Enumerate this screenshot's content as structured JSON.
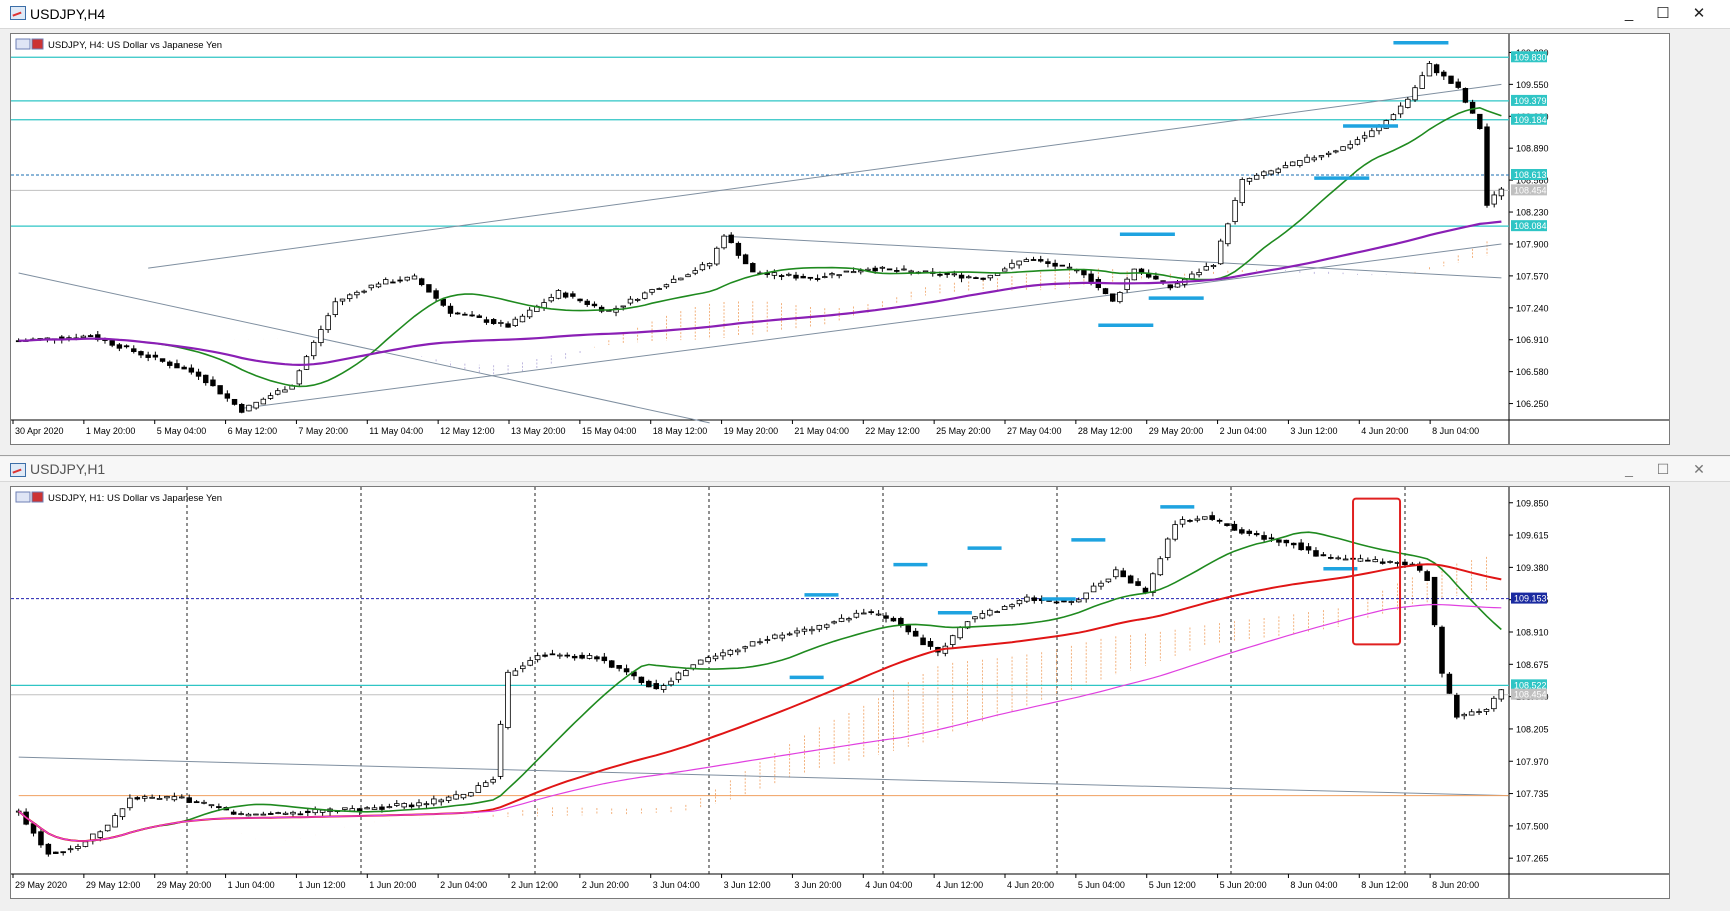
{
  "h4": {
    "window_title": "USDJPY,H4",
    "symbol_label": "USDJPY, H4:  US Dollar vs Japanese Yen",
    "controls": [
      "_",
      "☐",
      "✕"
    ]
  },
  "h1": {
    "window_title": "USDJPY,H1",
    "symbol_label": "USDJPY, H1:  US Dollar vs Japanese Yen",
    "controls": [
      "_",
      "☐",
      "✕"
    ]
  },
  "chart_data": [
    {
      "type": "candlestick",
      "panel": "h4",
      "ylim": [
        106.08,
        110.05
      ],
      "price_ticks": [
        "109.880",
        "109.550",
        "109.220",
        "108.890",
        "108.560",
        "108.230",
        "107.900",
        "107.570",
        "107.240",
        "106.910",
        "106.580",
        "106.250"
      ],
      "time_labels": [
        "30 Apr 2020",
        "1 May 20:00",
        "5 May 04:00",
        "6 May 12:00",
        "7 May 20:00",
        "11 May 04:00",
        "12 May 12:00",
        "13 May 20:00",
        "15 May 04:00",
        "18 May 12:00",
        "19 May 20:00",
        "21 May 04:00",
        "22 May 12:00",
        "25 May 20:00",
        "27 May 04:00",
        "28 May 12:00",
        "29 May 20:00",
        "2 Jun 04:00",
        "3 Jun 12:00",
        "4 Jun 20:00",
        "8 Jun 04:00"
      ],
      "price_badges": [
        {
          "value": "109.830",
          "price": 109.83,
          "color": "#2fc5c5"
        },
        {
          "value": "109.379",
          "price": 109.379,
          "color": "#2fc5c5"
        },
        {
          "value": "109.184",
          "price": 109.184,
          "color": "#2fc5c5"
        },
        {
          "value": "108.613",
          "price": 108.613,
          "color": "#2fc5c5"
        },
        {
          "value": "108.454",
          "price": 108.454,
          "color": "#c0c0c0"
        },
        {
          "value": "108.084",
          "price": 108.084,
          "color": "#2fc5c5"
        }
      ],
      "horizontal_levels": [
        109.83,
        109.379,
        109.184,
        108.084
      ],
      "dotted_level": 108.613,
      "current_price": 108.454,
      "key_points": [
        [
          0,
          106.9
        ],
        [
          10,
          106.95
        ],
        [
          25,
          106.55
        ],
        [
          31,
          106.18
        ],
        [
          38,
          106.45
        ],
        [
          44,
          107.3
        ],
        [
          50,
          107.5
        ],
        [
          55,
          107.55
        ],
        [
          60,
          107.2
        ],
        [
          68,
          107.05
        ],
        [
          75,
          107.4
        ],
        [
          82,
          107.2
        ],
        [
          90,
          107.5
        ],
        [
          96,
          107.7
        ],
        [
          98,
          108.0
        ],
        [
          102,
          107.6
        ],
        [
          110,
          107.55
        ],
        [
          118,
          107.65
        ],
        [
          126,
          107.6
        ],
        [
          134,
          107.55
        ],
        [
          140,
          107.75
        ],
        [
          148,
          107.6
        ],
        [
          152,
          107.3
        ],
        [
          155,
          107.65
        ],
        [
          160,
          107.45
        ],
        [
          166,
          107.7
        ],
        [
          170,
          108.55
        ],
        [
          176,
          108.7
        ],
        [
          184,
          108.9
        ],
        [
          189,
          109.1
        ],
        [
          193,
          109.4
        ],
        [
          196,
          109.75
        ],
        [
          200,
          109.5
        ],
        [
          203,
          109.1
        ],
        [
          204,
          108.3
        ],
        [
          206,
          108.48
        ]
      ],
      "bar_count": 207,
      "ma_green_period": 20,
      "ma_purple_period": 100
    },
    {
      "type": "candlestick",
      "panel": "h1",
      "ylim": [
        107.15,
        109.95
      ],
      "price_ticks": [
        "109.850",
        "109.615",
        "109.380",
        "109.145",
        "108.910",
        "108.675",
        "108.440",
        "108.205",
        "107.970",
        "107.735",
        "107.500",
        "107.265"
      ],
      "time_labels": [
        "29 May 2020",
        "29 May 12:00",
        "29 May 20:00",
        "1 Jun 04:00",
        "1 Jun 12:00",
        "1 Jun 20:00",
        "2 Jun 04:00",
        "2 Jun 12:00",
        "2 Jun 20:00",
        "3 Jun 04:00",
        "3 Jun 12:00",
        "3 Jun 20:00",
        "4 Jun 04:00",
        "4 Jun 12:00",
        "4 Jun 20:00",
        "5 Jun 04:00",
        "5 Jun 12:00",
        "5 Jun 20:00",
        "8 Jun 04:00",
        "8 Jun 12:00",
        "8 Jun 20:00"
      ],
      "price_badges": [
        {
          "value": "109.153",
          "price": 109.153,
          "color": "#1a2aa0"
        },
        {
          "value": "108.522",
          "price": 108.522,
          "color": "#2fc5c5"
        },
        {
          "value": "108.454",
          "price": 108.454,
          "color": "#c0c0c0"
        }
      ],
      "horizontal_levels": [
        108.522
      ],
      "dotted_level": 109.153,
      "current_price": 108.454,
      "key_points": [
        [
          0,
          107.6
        ],
        [
          4,
          107.3
        ],
        [
          8,
          107.35
        ],
        [
          12,
          107.5
        ],
        [
          15,
          107.7
        ],
        [
          22,
          107.7
        ],
        [
          30,
          107.58
        ],
        [
          38,
          107.6
        ],
        [
          46,
          107.62
        ],
        [
          54,
          107.66
        ],
        [
          60,
          107.72
        ],
        [
          64,
          107.85
        ],
        [
          66,
          108.6
        ],
        [
          70,
          108.75
        ],
        [
          78,
          108.72
        ],
        [
          86,
          108.5
        ],
        [
          92,
          108.7
        ],
        [
          100,
          108.85
        ],
        [
          108,
          108.95
        ],
        [
          114,
          109.05
        ],
        [
          118,
          109.0
        ],
        [
          124,
          108.75
        ],
        [
          128,
          109.0
        ],
        [
          136,
          109.15
        ],
        [
          142,
          109.12
        ],
        [
          148,
          109.35
        ],
        [
          152,
          109.2
        ],
        [
          156,
          109.7
        ],
        [
          160,
          109.75
        ],
        [
          166,
          109.62
        ],
        [
          172,
          109.55
        ],
        [
          176,
          109.45
        ],
        [
          184,
          109.42
        ],
        [
          188,
          109.4
        ],
        [
          190,
          109.3
        ],
        [
          192,
          108.6
        ],
        [
          194,
          108.3
        ],
        [
          198,
          108.35
        ],
        [
          200,
          108.48
        ]
      ],
      "bar_count": 201,
      "ma_green_period": 20,
      "ma_red_period": 60
    }
  ]
}
